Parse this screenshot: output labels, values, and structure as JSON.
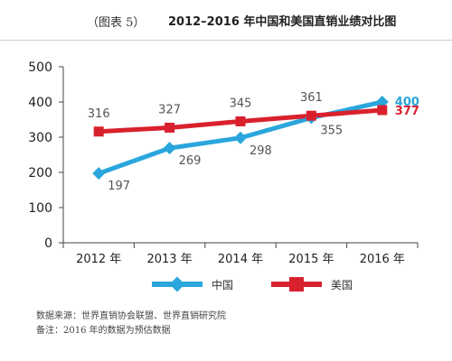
{
  "header": {
    "figure_label": "（图表 5）",
    "title": "2012–2016 年中国和美国直销业绩对比图"
  },
  "colors": {
    "china": "#2aa6dc",
    "usa": "#d9212e"
  },
  "chart_data": {
    "type": "line",
    "categories": [
      "2012 年",
      "2013 年",
      "2014 年",
      "2015 年",
      "2016 年"
    ],
    "yticks": [
      "0",
      "100",
      "200",
      "300",
      "400",
      "500"
    ],
    "ylim": [
      0,
      500
    ],
    "grid": false,
    "legend_position": "bottom",
    "series": [
      {
        "name": "中国",
        "key": "china",
        "values": [
          197,
          269,
          298,
          355,
          400
        ],
        "labels": [
          "197",
          "269",
          "298",
          "355",
          "400"
        ]
      },
      {
        "name": "美国",
        "key": "usa",
        "values": [
          316,
          327,
          345,
          361,
          377
        ],
        "labels": [
          "316",
          "327",
          "345",
          "361",
          "377"
        ]
      }
    ]
  },
  "legend": [
    {
      "key": "china",
      "label": "中国"
    },
    {
      "key": "usa",
      "label": "美国"
    }
  ],
  "notes": {
    "source": "数据来源：世界直销协会联盟、世界直销研究院",
    "remark": "备注：2016 年的数据为预估数据"
  }
}
